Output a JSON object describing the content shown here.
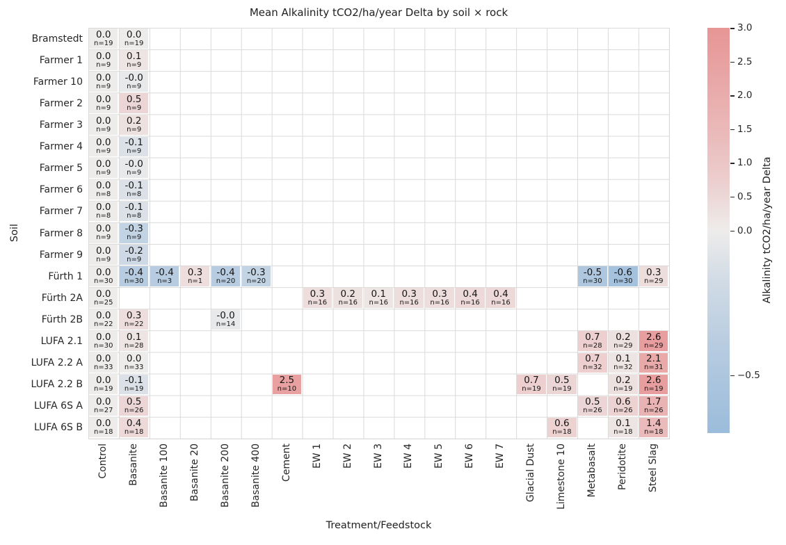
{
  "title": "Mean Alkalinity tCO2/ha/year Delta by soil × rock",
  "chart_data": {
    "type": "heatmap",
    "title": "Mean Alkalinity tCO2/ha/year Delta by soil × rock",
    "xlabel": "Treatment/Feedstock",
    "ylabel": "Soil",
    "grid": true,
    "rows": [
      "Bramstedt",
      "Farmer 1",
      "Farmer 10",
      "Farmer 2",
      "Farmer 3",
      "Farmer 4",
      "Farmer 5",
      "Farmer 6",
      "Farmer 7",
      "Farmer 8",
      "Farmer 9",
      "Fürth 1",
      "Fürth 2A",
      "Fürth 2B",
      "LUFA 2.1",
      "LUFA 2.2 A",
      "LUFA 2.2 B",
      "LUFA 6S A",
      "LUFA 6S B"
    ],
    "columns": [
      "Control",
      "Basanite",
      "Basanite 100",
      "Basanite 20",
      "Basanite 200",
      "Basanite 400",
      "Cement",
      "EW 1",
      "EW 2",
      "EW 3",
      "EW 4",
      "EW 5",
      "EW 6",
      "EW 7",
      "Glacial Dust",
      "Limestone 10",
      "Metabasalt",
      "Peridotite",
      "Steel Slag"
    ],
    "cells": [
      {
        "r": 0,
        "c": 0,
        "label": "0.0",
        "n": "n=19",
        "v": 0
      },
      {
        "r": 0,
        "c": 1,
        "label": "0.0",
        "n": "n=19",
        "v": 0
      },
      {
        "r": 1,
        "c": 0,
        "label": "0.0",
        "n": "n=9",
        "v": 0
      },
      {
        "r": 1,
        "c": 1,
        "label": "0.1",
        "n": "n=9",
        "v": 0.1
      },
      {
        "r": 2,
        "c": 0,
        "label": "0.0",
        "n": "n=9",
        "v": 0
      },
      {
        "r": 2,
        "c": 1,
        "label": "-0.0",
        "n": "n=9",
        "v": -0.02
      },
      {
        "r": 3,
        "c": 0,
        "label": "0.0",
        "n": "n=9",
        "v": 0
      },
      {
        "r": 3,
        "c": 1,
        "label": "0.5",
        "n": "n=9",
        "v": 0.5
      },
      {
        "r": 4,
        "c": 0,
        "label": "0.0",
        "n": "n=9",
        "v": 0
      },
      {
        "r": 4,
        "c": 1,
        "label": "0.2",
        "n": "n=9",
        "v": 0.2
      },
      {
        "r": 5,
        "c": 0,
        "label": "0.0",
        "n": "n=9",
        "v": 0
      },
      {
        "r": 5,
        "c": 1,
        "label": "-0.1",
        "n": "n=9",
        "v": -0.1
      },
      {
        "r": 6,
        "c": 0,
        "label": "0.0",
        "n": "n=9",
        "v": 0
      },
      {
        "r": 6,
        "c": 1,
        "label": "-0.0",
        "n": "n=9",
        "v": -0.02
      },
      {
        "r": 7,
        "c": 0,
        "label": "0.0",
        "n": "n=8",
        "v": 0
      },
      {
        "r": 7,
        "c": 1,
        "label": "-0.1",
        "n": "n=8",
        "v": -0.1
      },
      {
        "r": 8,
        "c": 0,
        "label": "0.0",
        "n": "n=8",
        "v": 0
      },
      {
        "r": 8,
        "c": 1,
        "label": "-0.1",
        "n": "n=8",
        "v": -0.1
      },
      {
        "r": 9,
        "c": 0,
        "label": "0.0",
        "n": "n=9",
        "v": 0
      },
      {
        "r": 9,
        "c": 1,
        "label": "-0.3",
        "n": "n=9",
        "v": -0.3
      },
      {
        "r": 10,
        "c": 0,
        "label": "0.0",
        "n": "n=9",
        "v": 0
      },
      {
        "r": 10,
        "c": 1,
        "label": "-0.2",
        "n": "n=9",
        "v": -0.2
      },
      {
        "r": 11,
        "c": 0,
        "label": "0.0",
        "n": "n=30",
        "v": 0
      },
      {
        "r": 11,
        "c": 1,
        "label": "-0.4",
        "n": "n=30",
        "v": -0.4
      },
      {
        "r": 11,
        "c": 2,
        "label": "-0.4",
        "n": "n=3",
        "v": -0.4
      },
      {
        "r": 11,
        "c": 3,
        "label": "0.3",
        "n": "n=1",
        "v": 0.3
      },
      {
        "r": 11,
        "c": 4,
        "label": "-0.4",
        "n": "n=20",
        "v": -0.4
      },
      {
        "r": 11,
        "c": 5,
        "label": "-0.3",
        "n": "n=20",
        "v": -0.3
      },
      {
        "r": 11,
        "c": 16,
        "label": "-0.5",
        "n": "n=30",
        "v": -0.5
      },
      {
        "r": 11,
        "c": 17,
        "label": "-0.6",
        "n": "n=30",
        "v": -0.6
      },
      {
        "r": 11,
        "c": 18,
        "label": "0.3",
        "n": "n=29",
        "v": 0.3
      },
      {
        "r": 12,
        "c": 0,
        "label": "0.0",
        "n": "n=25",
        "v": 0
      },
      {
        "r": 12,
        "c": 7,
        "label": "0.3",
        "n": "n=16",
        "v": 0.3
      },
      {
        "r": 12,
        "c": 8,
        "label": "0.2",
        "n": "n=16",
        "v": 0.2
      },
      {
        "r": 12,
        "c": 9,
        "label": "0.1",
        "n": "n=16",
        "v": 0.1
      },
      {
        "r": 12,
        "c": 10,
        "label": "0.3",
        "n": "n=16",
        "v": 0.3
      },
      {
        "r": 12,
        "c": 11,
        "label": "0.3",
        "n": "n=16",
        "v": 0.3
      },
      {
        "r": 12,
        "c": 12,
        "label": "0.4",
        "n": "n=16",
        "v": 0.4
      },
      {
        "r": 12,
        "c": 13,
        "label": "0.4",
        "n": "n=16",
        "v": 0.4
      },
      {
        "r": 13,
        "c": 0,
        "label": "0.0",
        "n": "n=22",
        "v": 0
      },
      {
        "r": 13,
        "c": 1,
        "label": "0.3",
        "n": "n=22",
        "v": 0.3
      },
      {
        "r": 13,
        "c": 4,
        "label": "-0.0",
        "n": "n=14",
        "v": -0.02
      },
      {
        "r": 14,
        "c": 0,
        "label": "0.0",
        "n": "n=30",
        "v": 0
      },
      {
        "r": 14,
        "c": 1,
        "label": "0.1",
        "n": "n=28",
        "v": 0.1
      },
      {
        "r": 14,
        "c": 16,
        "label": "0.7",
        "n": "n=28",
        "v": 0.7
      },
      {
        "r": 14,
        "c": 17,
        "label": "0.2",
        "n": "n=29",
        "v": 0.2
      },
      {
        "r": 14,
        "c": 18,
        "label": "2.6",
        "n": "n=29",
        "v": 2.6
      },
      {
        "r": 15,
        "c": 0,
        "label": "0.0",
        "n": "n=33",
        "v": 0
      },
      {
        "r": 15,
        "c": 1,
        "label": "0.0",
        "n": "n=33",
        "v": 0
      },
      {
        "r": 15,
        "c": 16,
        "label": "0.7",
        "n": "n=32",
        "v": 0.7
      },
      {
        "r": 15,
        "c": 17,
        "label": "0.1",
        "n": "n=32",
        "v": 0.1
      },
      {
        "r": 15,
        "c": 18,
        "label": "2.1",
        "n": "n=31",
        "v": 2.1
      },
      {
        "r": 16,
        "c": 0,
        "label": "0.0",
        "n": "n=19",
        "v": 0
      },
      {
        "r": 16,
        "c": 1,
        "label": "-0.1",
        "n": "n=19",
        "v": -0.1
      },
      {
        "r": 16,
        "c": 6,
        "label": "2.5",
        "n": "n=10",
        "v": 2.5
      },
      {
        "r": 16,
        "c": 14,
        "label": "0.7",
        "n": "n=19",
        "v": 0.7
      },
      {
        "r": 16,
        "c": 15,
        "label": "0.5",
        "n": "n=19",
        "v": 0.5
      },
      {
        "r": 16,
        "c": 17,
        "label": "0.2",
        "n": "n=19",
        "v": 0.2
      },
      {
        "r": 16,
        "c": 18,
        "label": "2.6",
        "n": "n=19",
        "v": 2.6
      },
      {
        "r": 17,
        "c": 0,
        "label": "0.0",
        "n": "n=27",
        "v": 0
      },
      {
        "r": 17,
        "c": 1,
        "label": "0.5",
        "n": "n=26",
        "v": 0.5
      },
      {
        "r": 17,
        "c": 16,
        "label": "0.5",
        "n": "n=26",
        "v": 0.5
      },
      {
        "r": 17,
        "c": 17,
        "label": "0.6",
        "n": "n=26",
        "v": 0.6
      },
      {
        "r": 17,
        "c": 18,
        "label": "1.7",
        "n": "n=26",
        "v": 1.7
      },
      {
        "r": 18,
        "c": 0,
        "label": "0.0",
        "n": "n=18",
        "v": 0
      },
      {
        "r": 18,
        "c": 1,
        "label": "0.4",
        "n": "n=18",
        "v": 0.4
      },
      {
        "r": 18,
        "c": 15,
        "label": "0.6",
        "n": "n=18",
        "v": 0.6
      },
      {
        "r": 18,
        "c": 17,
        "label": "0.1",
        "n": "n=18",
        "v": 0.1
      },
      {
        "r": 18,
        "c": 18,
        "label": "1.4",
        "n": "n=18",
        "v": 1.4
      }
    ],
    "colorbar": {
      "label": "Alkalinity tCO2/ha/year Delta",
      "ticks": [
        3.0,
        2.5,
        2.0,
        1.5,
        1.0,
        0.5,
        0.0,
        -0.5
      ],
      "tick_labels": [
        "3.0",
        "2.5",
        "2.0",
        "1.5",
        "1.0",
        "0.5",
        "0.0",
        "−0.5"
      ],
      "vmin": -0.7,
      "vcenter": 0.0,
      "vmax": 3.0
    },
    "colors": {
      "negative_end": "#9bbcdb",
      "center": "#eeeceb",
      "positive_end": "#e79595",
      "grid": "#d9d9d9",
      "text": "#262626"
    }
  }
}
